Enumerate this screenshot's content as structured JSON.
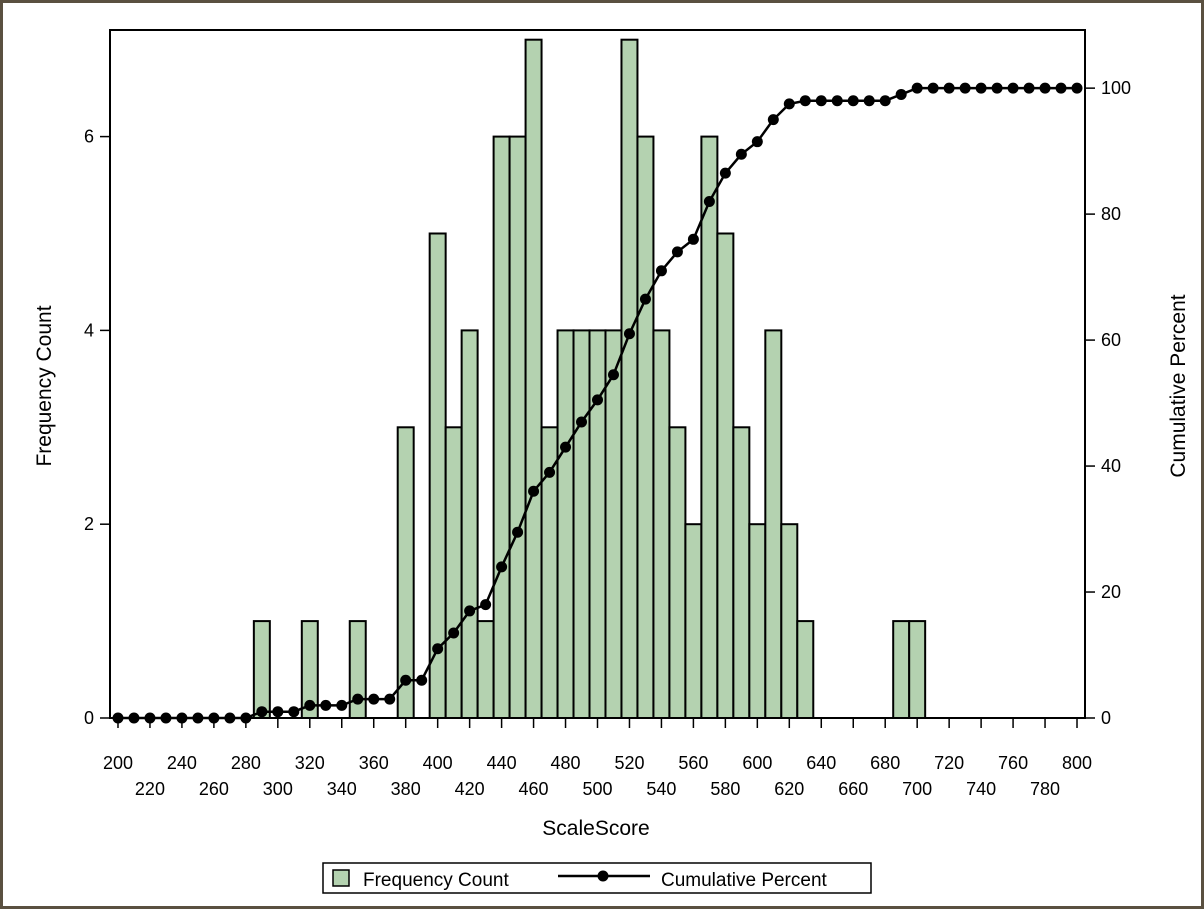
{
  "chart_data": {
    "type": "bar",
    "xlabel": "ScaleScore",
    "ylabel": "Frequency Count",
    "y2label": "Cumulative Percent",
    "xlim": [
      195,
      805
    ],
    "ylim": [
      0,
      7.1
    ],
    "y2lim": [
      0,
      100
    ],
    "bin_width": 10,
    "x_ticks_row1": [
      200,
      240,
      280,
      320,
      360,
      400,
      440,
      480,
      520,
      560,
      600,
      640,
      680,
      720,
      760,
      800
    ],
    "x_ticks_row2": [
      220,
      260,
      300,
      340,
      380,
      420,
      460,
      500,
      540,
      580,
      620,
      660,
      700,
      740,
      780
    ],
    "y_ticks": [
      0,
      2,
      4,
      6
    ],
    "y2_ticks": [
      0,
      20,
      40,
      60,
      80,
      100
    ],
    "grid": false,
    "legend_position": "bottom-center",
    "colors": {
      "bar_fill": "#b4d2b0",
      "bar_stroke": "#000000",
      "line": "#000000"
    },
    "series": [
      {
        "name": "Frequency Count",
        "kind": "bar",
        "x": [
          290,
          320,
          350,
          380,
          400,
          410,
          420,
          430,
          440,
          450,
          460,
          470,
          480,
          490,
          500,
          510,
          520,
          530,
          540,
          550,
          560,
          570,
          580,
          590,
          600,
          610,
          620,
          630,
          690,
          700
        ],
        "values": [
          1,
          1,
          1,
          3,
          5,
          3,
          4,
          1,
          6,
          6,
          7,
          3,
          4,
          4,
          4,
          4,
          7,
          6,
          4,
          3,
          2,
          6,
          5,
          3,
          2,
          4,
          2,
          1,
          1,
          1
        ]
      },
      {
        "name": "Cumulative Percent",
        "kind": "line",
        "x": [
          200,
          210,
          220,
          230,
          240,
          250,
          260,
          270,
          280,
          290,
          300,
          310,
          320,
          330,
          340,
          350,
          360,
          370,
          380,
          390,
          400,
          410,
          420,
          430,
          440,
          450,
          460,
          470,
          480,
          490,
          500,
          510,
          520,
          530,
          540,
          550,
          560,
          570,
          580,
          590,
          600,
          610,
          620,
          630,
          640,
          650,
          660,
          670,
          680,
          690,
          700,
          710,
          720,
          730,
          740,
          750,
          760,
          770,
          780,
          790,
          800
        ],
        "values": [
          0,
          0,
          0,
          0,
          0,
          0,
          0,
          0,
          0,
          1,
          1,
          1,
          2,
          2,
          2,
          3,
          3,
          3,
          6,
          6,
          11,
          13.5,
          17,
          18,
          24,
          29.5,
          36,
          39,
          43,
          47,
          50.5,
          54.5,
          61,
          66.5,
          71,
          74,
          76,
          82,
          86.5,
          89.5,
          91.5,
          95,
          97.5,
          98,
          98,
          98,
          98,
          98,
          98,
          99,
          100,
          100,
          100,
          100,
          100,
          100,
          100,
          100,
          100,
          100,
          100
        ]
      }
    ]
  }
}
